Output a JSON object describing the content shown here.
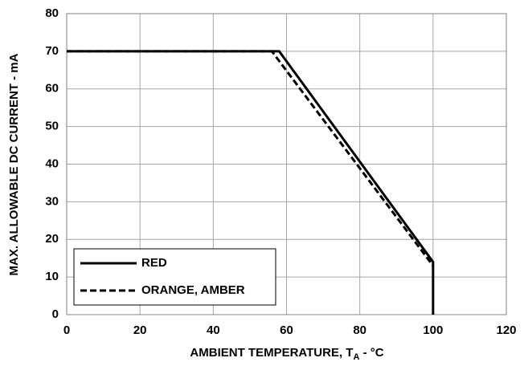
{
  "chart_data": {
    "type": "line",
    "ylabel": "MAX. ALLOWABLE DC CURRENT - mA",
    "xlabel": {
      "text": "AMBIENT TEMPERATURE, T",
      "subscript": "A",
      "suffix": " - °C"
    },
    "series": [
      {
        "name": "RED",
        "color": "#000000",
        "style": "solid",
        "x": [
          0,
          58,
          100,
          100
        ],
        "values": [
          70,
          70,
          14,
          0
        ]
      },
      {
        "name": "ORANGE, AMBER",
        "color": "#000000",
        "style": "dashed",
        "x": [
          0,
          56,
          100
        ],
        "values": [
          70,
          70,
          13
        ]
      }
    ],
    "xlim": [
      0,
      120
    ],
    "xticks": [
      0,
      20,
      40,
      60,
      80,
      100,
      120
    ],
    "ylim": [
      0,
      80
    ],
    "yticks": [
      0,
      10,
      20,
      30,
      40,
      50,
      60,
      70,
      80
    ],
    "grid": true,
    "legend": "lower left"
  }
}
